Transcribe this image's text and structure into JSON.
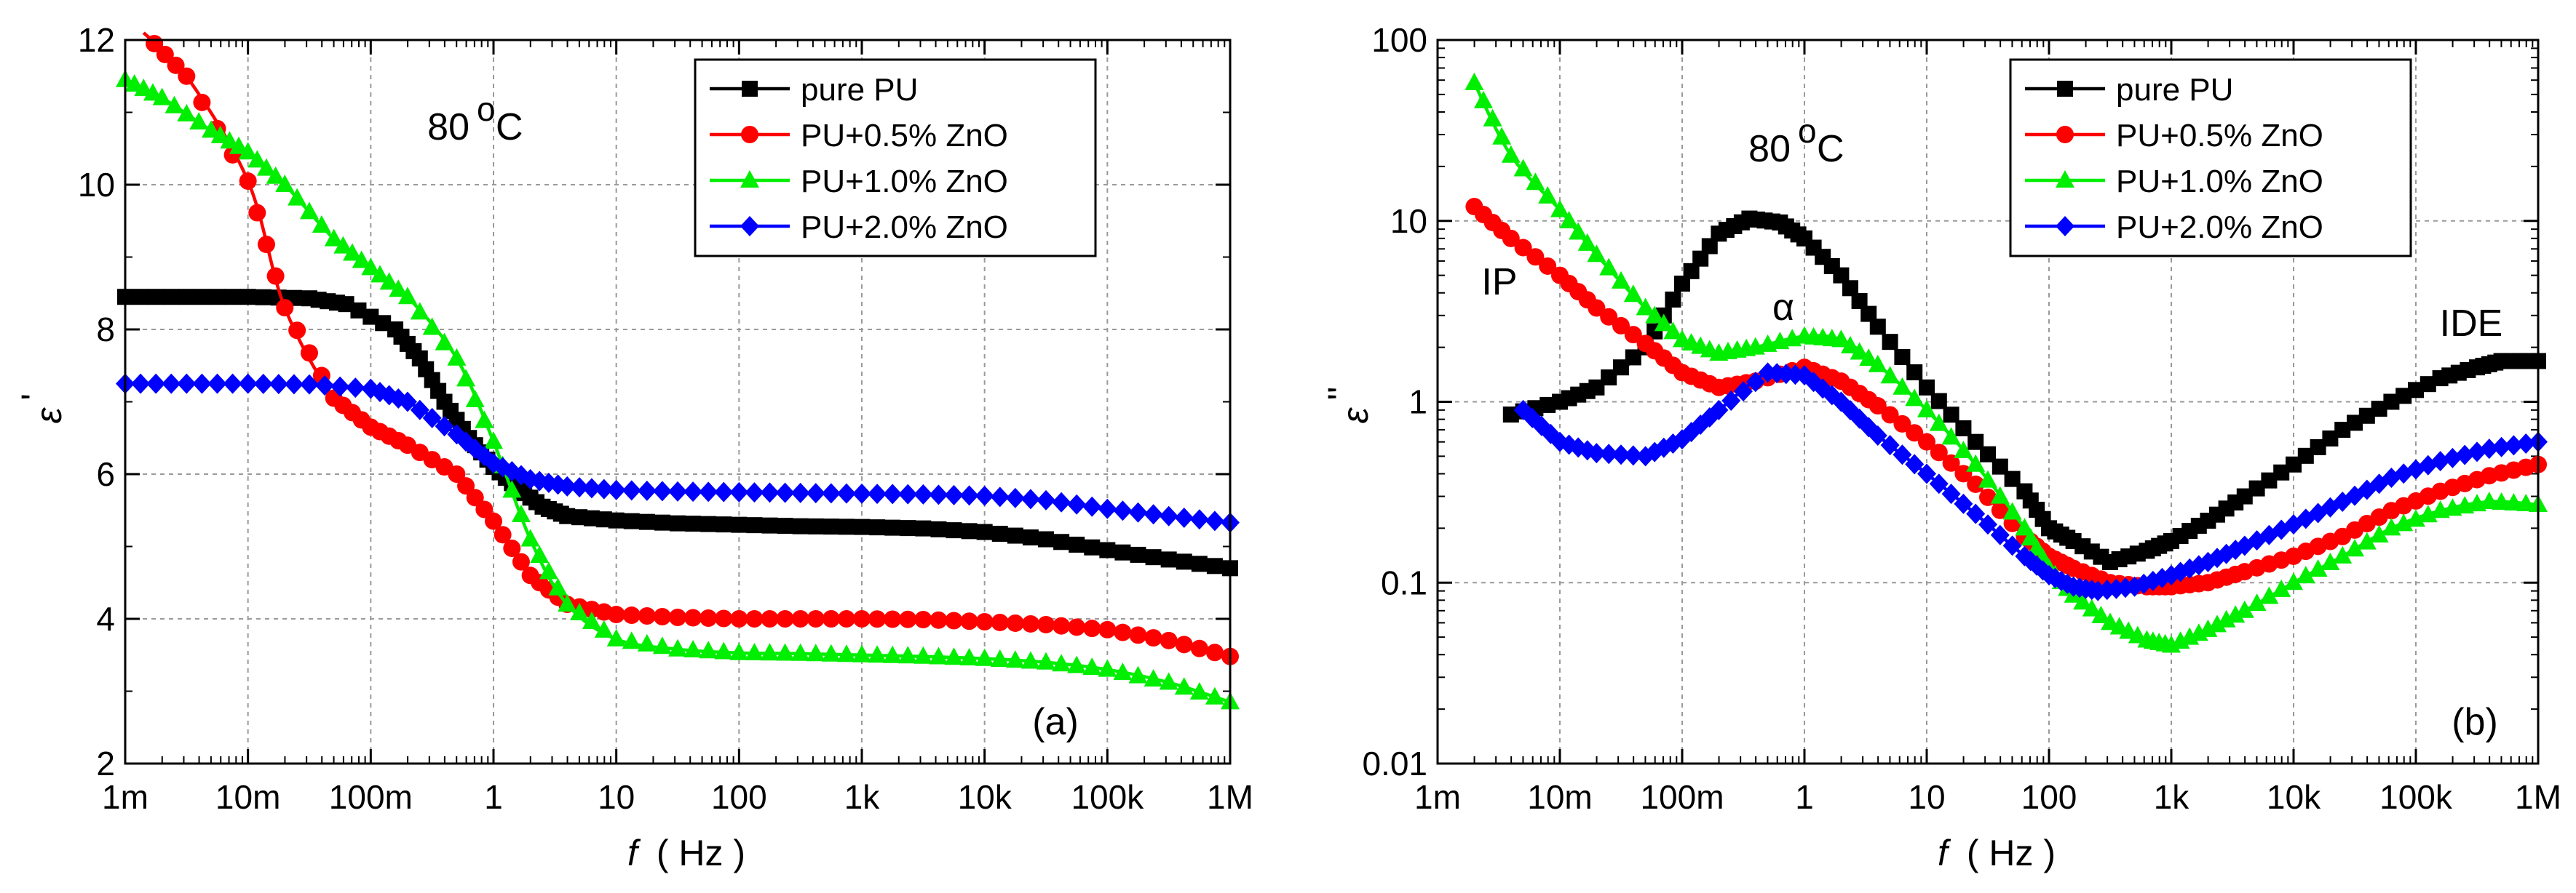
{
  "colors": {
    "pure_pu": "#000000",
    "zno_05": "#ff0000",
    "zno_10": "#00ee00",
    "zno_20": "#0000ff"
  },
  "chart_data": [
    {
      "type": "line",
      "panel_label": "(a)",
      "temperature_label": "80",
      "temperature_unit": "C",
      "temperature_superscript": "o",
      "xlabel": "f",
      "xlabel_unit": "( Hz )",
      "ylabel": "ε",
      "ylabel_prime": "'",
      "xscale": "log",
      "yscale": "linear",
      "xlim": [
        0.001,
        1000000
      ],
      "ylim": [
        2,
        12
      ],
      "grid": true,
      "legend_position": "top-right",
      "x_ticks": [
        0.001,
        0.01,
        0.1,
        1,
        10,
        100,
        1000,
        10000,
        100000,
        1000000
      ],
      "x_tick_labels": [
        "1m",
        "10m",
        "100m",
        "1",
        "10",
        "100",
        "1k",
        "10k",
        "100k",
        "1M"
      ],
      "y_ticks": [
        2,
        4,
        6,
        8,
        10,
        12
      ],
      "y_tick_labels": [
        "2",
        "4",
        "6",
        "8",
        "10",
        "12"
      ],
      "series": [
        {
          "name": "pure PU",
          "marker": "square",
          "color_key": "pure_pu",
          "points": [
            [
              -3,
              8.45
            ],
            [
              -2.5,
              8.45
            ],
            [
              -2,
              8.45
            ],
            [
              -1.5,
              8.43
            ],
            [
              -1.2,
              8.35
            ],
            [
              -0.8,
              8.0
            ],
            [
              -0.6,
              7.6
            ],
            [
              -0.4,
              7.0
            ],
            [
              -0.2,
              6.5
            ],
            [
              0,
              6.1
            ],
            [
              0.2,
              5.8
            ],
            [
              0.4,
              5.55
            ],
            [
              0.6,
              5.42
            ],
            [
              1,
              5.36
            ],
            [
              1.5,
              5.32
            ],
            [
              2,
              5.3
            ],
            [
              2.5,
              5.28
            ],
            [
              3,
              5.27
            ],
            [
              3.5,
              5.25
            ],
            [
              4,
              5.2
            ],
            [
              4.5,
              5.1
            ],
            [
              5,
              4.95
            ],
            [
              5.5,
              4.82
            ],
            [
              6,
              4.7
            ]
          ]
        },
        {
          "name": "PU+0.5% ZnO",
          "marker": "circle",
          "color_key": "zno_05",
          "points": [
            [
              -2.85,
              12.1
            ],
            [
              -2.5,
              11.5
            ],
            [
              -2,
              10.05
            ],
            [
              -1.7,
              8.3
            ],
            [
              -1.3,
              7.05
            ],
            [
              -1,
              6.65
            ],
            [
              -0.7,
              6.4
            ],
            [
              -0.3,
              6.0
            ],
            [
              0,
              5.35
            ],
            [
              0.3,
              4.6
            ],
            [
              0.6,
              4.2
            ],
            [
              1,
              4.06
            ],
            [
              1.5,
              4.02
            ],
            [
              2,
              4.0
            ],
            [
              2.5,
              4.0
            ],
            [
              3,
              4.0
            ],
            [
              3.5,
              3.99
            ],
            [
              4,
              3.96
            ],
            [
              4.5,
              3.92
            ],
            [
              5,
              3.85
            ],
            [
              5.5,
              3.7
            ],
            [
              6,
              3.48
            ]
          ]
        },
        {
          "name": "PU+1.0% ZnO",
          "marker": "triangle",
          "color_key": "zno_10",
          "points": [
            [
              -3,
              11.45
            ],
            [
              -2.7,
              11.2
            ],
            [
              -2.3,
              10.75
            ],
            [
              -2,
              10.45
            ],
            [
              -1.7,
              10.0
            ],
            [
              -1.3,
              9.25
            ],
            [
              -1,
              8.85
            ],
            [
              -0.7,
              8.45
            ],
            [
              -0.3,
              7.6
            ],
            [
              0,
              6.45
            ],
            [
              0.3,
              5.1
            ],
            [
              0.6,
              4.2
            ],
            [
              1,
              3.72
            ],
            [
              1.5,
              3.58
            ],
            [
              2,
              3.53
            ],
            [
              2.5,
              3.52
            ],
            [
              3,
              3.5
            ],
            [
              3.5,
              3.48
            ],
            [
              4,
              3.45
            ],
            [
              4.5,
              3.4
            ],
            [
              5,
              3.3
            ],
            [
              5.5,
              3.12
            ],
            [
              6,
              2.85
            ]
          ]
        },
        {
          "name": "PU+2.0% ZnO",
          "marker": "diamond",
          "color_key": "zno_20",
          "points": [
            [
              -3,
              7.25
            ],
            [
              -2.5,
              7.25
            ],
            [
              -2,
              7.25
            ],
            [
              -1.5,
              7.24
            ],
            [
              -1,
              7.18
            ],
            [
              -0.7,
              7.0
            ],
            [
              -0.3,
              6.55
            ],
            [
              0,
              6.15
            ],
            [
              0.3,
              5.93
            ],
            [
              0.6,
              5.83
            ],
            [
              1,
              5.78
            ],
            [
              1.5,
              5.76
            ],
            [
              2,
              5.75
            ],
            [
              2.5,
              5.74
            ],
            [
              3,
              5.73
            ],
            [
              3.5,
              5.72
            ],
            [
              4,
              5.7
            ],
            [
              4.5,
              5.64
            ],
            [
              5,
              5.52
            ],
            [
              5.5,
              5.42
            ],
            [
              6,
              5.33
            ]
          ]
        }
      ]
    },
    {
      "type": "line",
      "panel_label": "(b)",
      "temperature_label": "80",
      "temperature_unit": "C",
      "temperature_superscript": "o",
      "xlabel": "f",
      "xlabel_unit": "( Hz )",
      "ylabel": "ε",
      "ylabel_prime": "''",
      "xscale": "log",
      "yscale": "log",
      "xlim": [
        0.001,
        1000000
      ],
      "ylim": [
        0.01,
        100
      ],
      "grid": true,
      "legend_position": "top-right",
      "x_ticks": [
        0.001,
        0.01,
        0.1,
        1,
        10,
        100,
        1000,
        10000,
        100000,
        1000000
      ],
      "x_tick_labels": [
        "1m",
        "10m",
        "100m",
        "1",
        "10",
        "100",
        "1k",
        "10k",
        "100k",
        "1M"
      ],
      "y_ticks": [
        0.01,
        0.1,
        1,
        10,
        100
      ],
      "y_tick_labels": [
        "0.01",
        "0.1",
        "1",
        "10",
        "100"
      ],
      "annotations": [
        "IP",
        "α",
        "IDE"
      ],
      "series": [
        {
          "name": "pure PU",
          "marker": "square",
          "color_key": "pure_pu",
          "points": [
            [
              -2.4,
              0.85
            ],
            [
              -2,
              1.0
            ],
            [
              -1.7,
              1.2
            ],
            [
              -1.3,
              2.0
            ],
            [
              -1,
              4.5
            ],
            [
              -0.7,
              8.5
            ],
            [
              -0.45,
              10.3
            ],
            [
              -0.2,
              9.8
            ],
            [
              0,
              8.0
            ],
            [
              0.3,
              5.0
            ],
            [
              0.6,
              2.6
            ],
            [
              1,
              1.2
            ],
            [
              1.4,
              0.6
            ],
            [
              1.8,
              0.32
            ],
            [
              2,
              0.2
            ],
            [
              2.2,
              0.17
            ],
            [
              2.5,
              0.13
            ],
            [
              2.8,
              0.15
            ],
            [
              3,
              0.17
            ],
            [
              3.3,
              0.22
            ],
            [
              3.6,
              0.3
            ],
            [
              4,
              0.45
            ],
            [
              4.4,
              0.7
            ],
            [
              4.8,
              1.0
            ],
            [
              5.2,
              1.35
            ],
            [
              5.5,
              1.55
            ],
            [
              5.7,
              1.68
            ],
            [
              6,
              1.68
            ]
          ]
        },
        {
          "name": "PU+0.5% ZnO",
          "marker": "circle",
          "color_key": "zno_05",
          "points": [
            [
              -2.7,
              12
            ],
            [
              -2.4,
              8
            ],
            [
              -2,
              5
            ],
            [
              -1.7,
              3.3
            ],
            [
              -1.3,
              2.1
            ],
            [
              -1,
              1.45
            ],
            [
              -0.7,
              1.2
            ],
            [
              -0.4,
              1.3
            ],
            [
              0,
              1.55
            ],
            [
              0.3,
              1.3
            ],
            [
              0.6,
              0.95
            ],
            [
              1,
              0.6
            ],
            [
              1.4,
              0.35
            ],
            [
              1.8,
              0.18
            ],
            [
              2,
              0.14
            ],
            [
              2.2,
              0.12
            ],
            [
              2.5,
              0.1
            ],
            [
              2.8,
              0.095
            ],
            [
              3,
              0.095
            ],
            [
              3.3,
              0.1
            ],
            [
              3.6,
              0.115
            ],
            [
              4,
              0.14
            ],
            [
              4.4,
              0.18
            ],
            [
              4.8,
              0.25
            ],
            [
              5.2,
              0.32
            ],
            [
              5.6,
              0.39
            ],
            [
              6,
              0.45
            ]
          ]
        },
        {
          "name": "PU+1.0% ZnO",
          "marker": "triangle",
          "color_key": "zno_10",
          "points": [
            [
              -2.7,
              58
            ],
            [
              -2.4,
              23
            ],
            [
              -2,
              11.5
            ],
            [
              -1.7,
              6.5
            ],
            [
              -1.3,
              3.3
            ],
            [
              -1,
              2.2
            ],
            [
              -0.7,
              1.85
            ],
            [
              -0.4,
              2.0
            ],
            [
              0,
              2.3
            ],
            [
              0.3,
              2.2
            ],
            [
              0.6,
              1.6
            ],
            [
              1,
              0.9
            ],
            [
              1.4,
              0.45
            ],
            [
              1.8,
              0.2
            ],
            [
              2,
              0.12
            ],
            [
              2.2,
              0.085
            ],
            [
              2.5,
              0.06
            ],
            [
              2.8,
              0.048
            ],
            [
              3,
              0.045
            ],
            [
              3.3,
              0.055
            ],
            [
              3.6,
              0.07
            ],
            [
              4,
              0.1
            ],
            [
              4.4,
              0.14
            ],
            [
              4.8,
              0.2
            ],
            [
              5.2,
              0.25
            ],
            [
              5.6,
              0.28
            ],
            [
              6,
              0.27
            ]
          ]
        },
        {
          "name": "PU+2.0% ZnO",
          "marker": "diamond",
          "color_key": "zno_20",
          "points": [
            [
              -2.3,
              0.9
            ],
            [
              -2,
              0.6
            ],
            [
              -1.7,
              0.52
            ],
            [
              -1.3,
              0.5
            ],
            [
              -1,
              0.62
            ],
            [
              -0.7,
              0.9
            ],
            [
              -0.3,
              1.45
            ],
            [
              0,
              1.4
            ],
            [
              0.3,
              1.0
            ],
            [
              0.6,
              0.65
            ],
            [
              1,
              0.4
            ],
            [
              1.4,
              0.24
            ],
            [
              1.8,
              0.14
            ],
            [
              2,
              0.11
            ],
            [
              2.2,
              0.095
            ],
            [
              2.4,
              0.09
            ],
            [
              2.7,
              0.095
            ],
            [
              3,
              0.11
            ],
            [
              3.3,
              0.13
            ],
            [
              3.6,
              0.16
            ],
            [
              4,
              0.21
            ],
            [
              4.4,
              0.28
            ],
            [
              4.8,
              0.38
            ],
            [
              5.2,
              0.47
            ],
            [
              5.6,
              0.55
            ],
            [
              6,
              0.6
            ]
          ]
        }
      ]
    }
  ]
}
